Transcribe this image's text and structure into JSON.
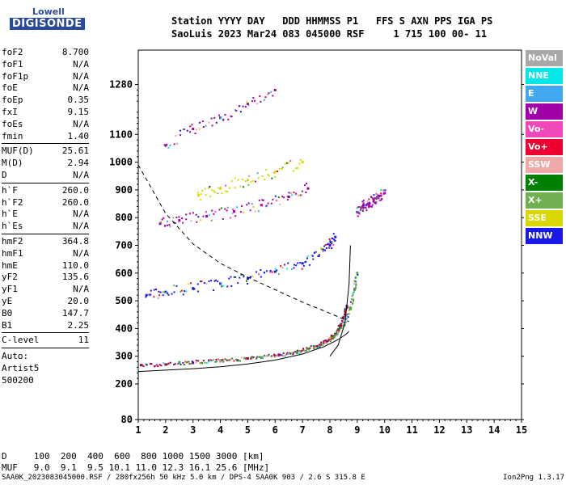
{
  "logo": {
    "line1": "Lowell",
    "line2": "DIGISONDE"
  },
  "header": {
    "line1": "Station YYYY DAY   DDD HHMMSS P1   FFS S AXN PPS IGA PS",
    "line2": "SaoLuis 2023 Mar24 083 045000 RSF     1 715 100 00- 11"
  },
  "params": {
    "g1": [
      {
        "label": "foF2",
        "value": "8.700"
      },
      {
        "label": "foF1",
        "value": "N/A"
      },
      {
        "label": "foF1p",
        "value": "N/A"
      },
      {
        "label": "foE",
        "value": "N/A"
      },
      {
        "label": "foEp",
        "value": "0.35"
      },
      {
        "label": "fxI",
        "value": "9.15"
      },
      {
        "label": "foEs",
        "value": "N/A"
      },
      {
        "label": "fmin",
        "value": "1.40"
      }
    ],
    "g2": [
      {
        "label": "MUF(D)",
        "value": "25.61"
      },
      {
        "label": "M(D)",
        "value": "2.94"
      },
      {
        "label": "D",
        "value": "N/A"
      }
    ],
    "g3": [
      {
        "label": "h`F",
        "value": "260.0"
      },
      {
        "label": "h`F2",
        "value": "260.0"
      },
      {
        "label": "h`E",
        "value": "N/A"
      },
      {
        "label": "h`Es",
        "value": "N/A"
      }
    ],
    "g4": [
      {
        "label": "hmF2",
        "value": "364.8"
      },
      {
        "label": "hmF1",
        "value": "N/A"
      },
      {
        "label": "hmE",
        "value": "110.0"
      },
      {
        "label": "yF2",
        "value": "135.6"
      },
      {
        "label": "yF1",
        "value": "N/A"
      },
      {
        "label": "yE",
        "value": "20.0"
      },
      {
        "label": "B0",
        "value": "147.7"
      },
      {
        "label": "B1",
        "value": "2.25"
      }
    ],
    "c_level": {
      "label": "C-level",
      "value": "11"
    },
    "auto": [
      "Auto:",
      "Artist5",
      "500200"
    ]
  },
  "legend": [
    {
      "label": "NoVal",
      "color": "#a8a8a8"
    },
    {
      "label": "NNE",
      "color": "#00e8e8"
    },
    {
      "label": "E",
      "color": "#40a8f0"
    },
    {
      "label": "W",
      "color": "#a000a8"
    },
    {
      "label": "Vo-",
      "color": "#f048b8"
    },
    {
      "label": "Vo+",
      "color": "#f00030"
    },
    {
      "label": "SSW",
      "color": "#f0a8a8"
    },
    {
      "label": "X-",
      "color": "#008000"
    },
    {
      "label": "X+",
      "color": "#70b050"
    },
    {
      "label": "SSE",
      "color": "#d8d800"
    },
    {
      "label": "NNW",
      "color": "#1818e8"
    }
  ],
  "dm": {
    "line1": "D     100  200  400  600  800 1000 1500 3000 [km]",
    "line2": "MUF   9.0  9.1  9.5 10.1 11.0 12.3 16.1 25.6 [MHz]"
  },
  "footer": {
    "left": "SAA0K_2023083045000.RSF / 280fx256h 50 kHz 5.0 km / DPS-4 SAA0K 903 / 2.6 S 315.8 E",
    "right": "Ion2Png 1.3.17"
  },
  "chart_data": {
    "type": "scatter",
    "x_ticks": [
      "1",
      "2",
      "3",
      "4",
      "5",
      "6",
      "7",
      "8",
      "9",
      "10",
      "11",
      "12",
      "13",
      "14",
      "15"
    ],
    "xlim": [
      1,
      15
    ],
    "y_ticks": [
      "80",
      "200",
      "300",
      "400",
      "500",
      "600",
      "700",
      "800",
      "900",
      "1000",
      "1100",
      "1280"
    ],
    "y_tick_values": [
      80,
      200,
      300,
      400,
      500,
      600,
      700,
      800,
      900,
      1000,
      1100,
      1280
    ],
    "ylim": [
      80,
      1280
    ],
    "series": [
      {
        "role": "o-trace",
        "color": "#a00040",
        "x": [
          1.1,
          2,
          3,
          4,
          5,
          6,
          6.8,
          7.5,
          7.9,
          8.2,
          8.4,
          8.55,
          8.62
        ],
        "y": [
          268,
          270,
          276,
          284,
          292,
          302,
          315,
          335,
          355,
          380,
          410,
          450,
          480
        ]
      },
      {
        "role": "x-trace",
        "color": "#40a040",
        "x": [
          2.5,
          4,
          5.5,
          6.8,
          7.6,
          8.1,
          8.5,
          8.75,
          8.9,
          9.0
        ],
        "y": [
          278,
          282,
          295,
          312,
          335,
          365,
          410,
          470,
          540,
          600
        ]
      },
      {
        "role": "f2-multihop",
        "color": "#1818e8",
        "x": [
          1.3,
          2,
          3,
          4,
          5,
          6,
          7,
          7.6,
          8.0,
          8.2
        ],
        "y": [
          520,
          532,
          545,
          562,
          580,
          605,
          635,
          665,
          700,
          730
        ]
      },
      {
        "role": "third-hop",
        "color": "#a000a8",
        "x": [
          1.8,
          2.5,
          3.5,
          4.5,
          5.5,
          6.5,
          7.2
        ],
        "y": [
          778,
          790,
          805,
          822,
          845,
          875,
          905
        ]
      },
      {
        "role": "upper-hop",
        "color": "#d8d800",
        "x": [
          3.2,
          4,
          5,
          6,
          7
        ],
        "y": [
          880,
          905,
          935,
          965,
          1000
        ]
      },
      {
        "role": "top-hop",
        "color": "#a000a8",
        "x": [
          2,
          3,
          4,
          5,
          6
        ],
        "y": [
          1060,
          1120,
          1160,
          1210,
          1260
        ]
      },
      {
        "role": "cusp-cluster",
        "color": "#a000a8",
        "x": [
          9.0,
          9.2,
          9.4,
          9.6,
          9.8,
          10
        ],
        "y": [
          820,
          840,
          850,
          865,
          878,
          888
        ]
      }
    ],
    "profile_curve": {
      "x": [
        1.0,
        2.0,
        3.0,
        4.0,
        5.0,
        6.0,
        7.0,
        7.8,
        8.3,
        8.6,
        8.7
      ],
      "y": [
        245,
        250,
        255,
        262,
        272,
        286,
        308,
        335,
        360,
        380,
        390
      ]
    },
    "upper_curve": {
      "x": [
        8.0,
        8.3,
        8.55,
        8.7,
        8.75
      ],
      "y": [
        300,
        340,
        420,
        560,
        700
      ]
    },
    "dashed_muf": {
      "x": [
        1.0,
        2.0,
        3.0,
        4.0,
        5.0,
        6.0,
        7.0,
        8.0,
        8.7
      ],
      "y": [
        990,
        815,
        705,
        635,
        585,
        540,
        495,
        455,
        425
      ]
    }
  }
}
